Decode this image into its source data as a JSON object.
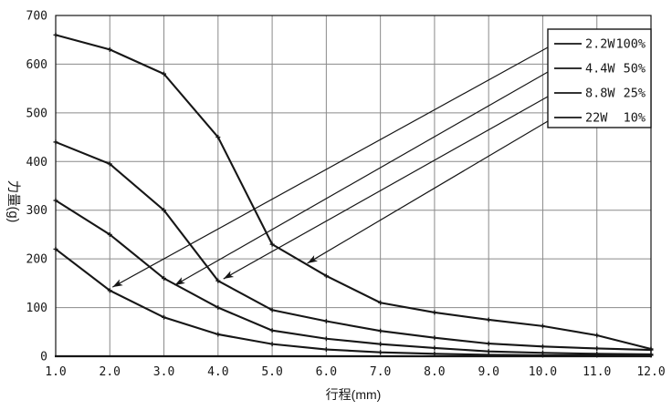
{
  "chart_data": {
    "type": "line",
    "title": "",
    "xlabel": "行程(mm)",
    "ylabel": "力量(g)",
    "xlim": [
      1,
      12
    ],
    "ylim": [
      0,
      700
    ],
    "x": [
      1,
      2,
      3,
      4,
      5,
      6,
      7,
      8,
      9,
      10,
      11,
      12
    ],
    "x_tick_labels": [
      "1.0",
      "2.0",
      "3.0",
      "4.0",
      "5.0",
      "6.0",
      "7.0",
      "8.0",
      "9.0",
      "10.0",
      "11.0",
      "12.0"
    ],
    "y_ticks": [
      0,
      100,
      200,
      300,
      400,
      500,
      600,
      700
    ],
    "y_tick_labels": [
      "0",
      "100",
      "200",
      "300",
      "400",
      "500",
      "600",
      "700"
    ],
    "grid": true,
    "legend_position": "top-right",
    "series": [
      {
        "label": "2.2W",
        "duty": "100%",
        "values": [
          220,
          135,
          80,
          45,
          25,
          14,
          8,
          5,
          3,
          2,
          2,
          2
        ]
      },
      {
        "label": "4.4W",
        "duty": "50%",
        "values": [
          320,
          250,
          160,
          100,
          53,
          36,
          25,
          17,
          10,
          7,
          5,
          4
        ]
      },
      {
        "label": "8.8W",
        "duty": "25%",
        "values": [
          440,
          395,
          300,
          155,
          95,
          72,
          52,
          38,
          26,
          20,
          16,
          13
        ]
      },
      {
        "label": "22W",
        "duty": "10%",
        "values": [
          660,
          630,
          580,
          450,
          230,
          165,
          110,
          90,
          75,
          62,
          43,
          15
        ]
      }
    ],
    "leader_arrows": [
      {
        "series": "2.2W",
        "x": 2.05,
        "y": 142
      },
      {
        "series": "4.4W",
        "x": 3.2,
        "y": 146
      },
      {
        "series": "8.8W",
        "x": 4.1,
        "y": 159
      },
      {
        "series": "22W",
        "x": 5.65,
        "y": 191
      }
    ]
  },
  "colors": {
    "background": "#ffffff",
    "line": "#161616",
    "grid": "#8a8a8a",
    "text": "#161616",
    "legend_border": "#161616",
    "legend_background": "#ffffff"
  }
}
